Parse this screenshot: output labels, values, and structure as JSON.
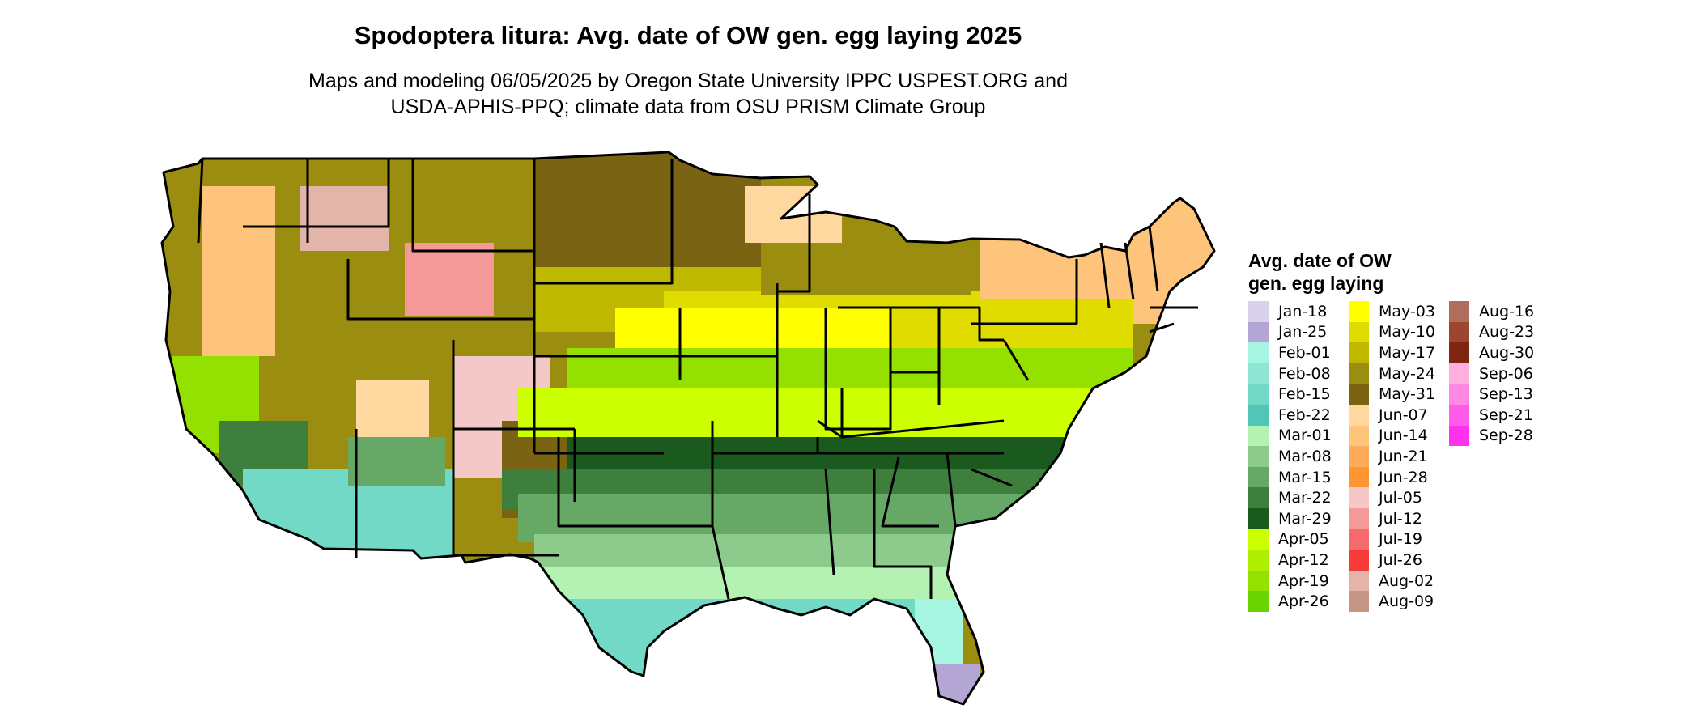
{
  "title": "Spodoptera litura: Avg. date of OW gen. egg laying 2025",
  "subtitle_line1": "Maps and modeling 06/05/2025 by Oregon State University IPPC USPEST.ORG and",
  "subtitle_line2": "USDA-APHIS-PPQ; climate data from OSU PRISM Climate Group",
  "legend": {
    "title_line1": "Avg. date of OW",
    "title_line2": "gen. egg laying",
    "columns": [
      [
        {
          "label": "Jan-18",
          "color": "#d9d2ea"
        },
        {
          "label": "Jan-25",
          "color": "#b3a6d4"
        },
        {
          "label": "Feb-01",
          "color": "#a6f5e0"
        },
        {
          "label": "Feb-08",
          "color": "#8ee6d3"
        },
        {
          "label": "Feb-15",
          "color": "#72d9c6"
        },
        {
          "label": "Feb-22",
          "color": "#52c6b6"
        },
        {
          "label": "Mar-01",
          "color": "#b4f2b4"
        },
        {
          "label": "Mar-08",
          "color": "#8ccb8c"
        },
        {
          "label": "Mar-15",
          "color": "#66a866"
        },
        {
          "label": "Mar-22",
          "color": "#3e7f3e"
        },
        {
          "label": "Mar-29",
          "color": "#1a5a1e"
        },
        {
          "label": "Apr-05",
          "color": "#ccff00"
        },
        {
          "label": "Apr-12",
          "color": "#b0ee00"
        },
        {
          "label": "Apr-19",
          "color": "#94e000"
        },
        {
          "label": "Apr-26",
          "color": "#6ad400"
        }
      ],
      [
        {
          "label": "May-03",
          "color": "#ffff00"
        },
        {
          "label": "May-10",
          "color": "#e0dc00"
        },
        {
          "label": "May-17",
          "color": "#bfb800"
        },
        {
          "label": "May-24",
          "color": "#9a8d10"
        },
        {
          "label": "May-31",
          "color": "#7a6414"
        },
        {
          "label": "Jun-07",
          "color": "#ffd8a0"
        },
        {
          "label": "Jun-14",
          "color": "#ffc47c"
        },
        {
          "label": "Jun-21",
          "color": "#ffaa58"
        },
        {
          "label": "Jun-28",
          "color": "#ff9533"
        },
        {
          "label": "Jul-05",
          "color": "#f5c8c8"
        },
        {
          "label": "Jul-12",
          "color": "#f59898"
        },
        {
          "label": "Jul-19",
          "color": "#f56a6a"
        },
        {
          "label": "Jul-26",
          "color": "#f53a3a"
        },
        {
          "label": "Aug-02",
          "color": "#e3b4a8"
        },
        {
          "label": "Aug-09",
          "color": "#c89484"
        }
      ],
      [
        {
          "label": "Aug-16",
          "color": "#b06e5e"
        },
        {
          "label": "Aug-23",
          "color": "#9c4632"
        },
        {
          "label": "Aug-30",
          "color": "#7f2610"
        },
        {
          "label": "Sep-06",
          "color": "#ffb0de"
        },
        {
          "label": "Sep-13",
          "color": "#ff88e2"
        },
        {
          "label": "Sep-21",
          "color": "#ff5ae8"
        },
        {
          "label": "Sep-28",
          "color": "#ff30ee"
        }
      ]
    ]
  }
}
